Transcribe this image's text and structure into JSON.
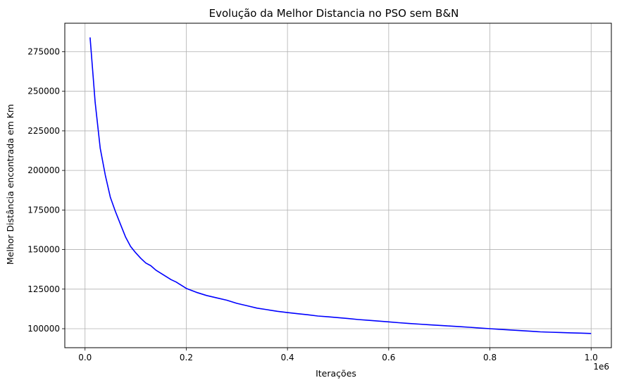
{
  "chart_data": {
    "type": "line",
    "title": "Evolução da Melhor Distancia no PSO sem B&N",
    "xlabel": "Iterações",
    "ylabel": "Melhor Distância encontrada em Km",
    "x_offset_label": "1e6",
    "xlim": [
      -0.04,
      1.04
    ],
    "ylim": [
      88000,
      293000
    ],
    "x_ticks": [
      0.0,
      0.2,
      0.4,
      0.6,
      0.8,
      1.0
    ],
    "x_tick_labels": [
      "0.0",
      "0.2",
      "0.4",
      "0.6",
      "0.8",
      "1.0"
    ],
    "y_ticks": [
      100000,
      125000,
      150000,
      175000,
      200000,
      225000,
      250000,
      275000
    ],
    "y_tick_labels": [
      "100000",
      "125000",
      "150000",
      "175000",
      "200000",
      "225000",
      "250000",
      "275000"
    ],
    "grid": true,
    "series": [
      {
        "color": "#0000ff",
        "x": [
          0.01,
          0.02,
          0.03,
          0.04,
          0.05,
          0.06,
          0.07,
          0.08,
          0.09,
          0.1,
          0.11,
          0.12,
          0.13,
          0.14,
          0.15,
          0.16,
          0.17,
          0.18,
          0.19,
          0.2,
          0.22,
          0.24,
          0.26,
          0.28,
          0.3,
          0.32,
          0.34,
          0.36,
          0.38,
          0.4,
          0.42,
          0.44,
          0.46,
          0.48,
          0.5,
          0.52,
          0.54,
          0.56,
          0.58,
          0.6,
          0.62,
          0.64,
          0.66,
          0.68,
          0.7,
          0.72,
          0.74,
          0.76,
          0.78,
          0.8,
          0.82,
          0.84,
          0.86,
          0.88,
          0.9,
          0.92,
          0.94,
          0.96,
          0.98,
          1.0
        ],
        "y": [
          284000,
          243000,
          214000,
          197000,
          183000,
          174000,
          166000,
          158000,
          152000,
          148000,
          144500,
          141500,
          139800,
          137000,
          135000,
          133000,
          131000,
          129500,
          127500,
          125500,
          123000,
          121000,
          119500,
          118000,
          116000,
          114500,
          113000,
          112000,
          111000,
          110200,
          109500,
          108800,
          108000,
          107500,
          107000,
          106400,
          105800,
          105300,
          104800,
          104300,
          103800,
          103300,
          102900,
          102500,
          102100,
          101700,
          101300,
          100900,
          100400,
          100000,
          99600,
          99200,
          98800,
          98400,
          98000,
          97800,
          97600,
          97400,
          97200,
          97000
        ]
      }
    ]
  }
}
